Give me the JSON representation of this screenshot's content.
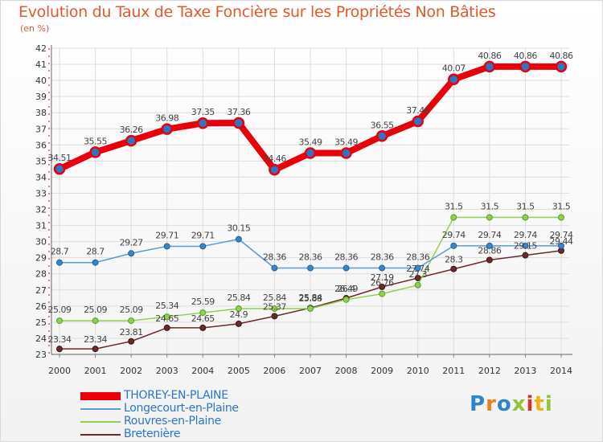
{
  "title": "Evolution du Taux de Taxe Foncière sur les Propriétés Non Bâties",
  "unit": "(en %)",
  "logo": "Proxiti",
  "chart_data": {
    "type": "line",
    "title": "Evolution du Taux de Taxe Foncière sur les Propriétés Non Bâties",
    "ylabel": "(en %)",
    "xlabel": "",
    "ylim": [
      23,
      42
    ],
    "yticks": [
      23,
      24,
      25,
      26,
      27,
      28,
      29,
      30,
      31,
      32,
      33,
      34,
      35,
      36,
      37,
      38,
      39,
      40,
      41,
      42
    ],
    "x": [
      "2000",
      "2001",
      "2002",
      "2003",
      "2004",
      "2005",
      "2006",
      "2007",
      "2008",
      "2009",
      "2010",
      "2011",
      "2012",
      "2013",
      "2014"
    ],
    "series": [
      {
        "name": "THOREY-EN-PLAINE",
        "color": "#e8000b",
        "values": [
          34.51,
          35.55,
          36.26,
          36.98,
          37.35,
          37.36,
          34.46,
          35.49,
          35.49,
          36.55,
          37.46,
          40.07,
          40.86,
          40.86,
          40.86
        ]
      },
      {
        "name": "Longecourt-en-Plaine",
        "color": "#5b9bd5",
        "values": [
          28.7,
          28.7,
          29.27,
          29.71,
          29.71,
          30.15,
          28.36,
          28.36,
          28.36,
          28.36,
          28.36,
          29.74,
          29.74,
          29.74,
          29.74
        ]
      },
      {
        "name": "Rouvres-en-Plaine",
        "color": "#8fd14f",
        "values": [
          25.09,
          25.09,
          25.09,
          25.34,
          25.59,
          25.84,
          25.84,
          25.84,
          26.4,
          26.76,
          27.3,
          31.5,
          31.5,
          31.5,
          31.5
        ]
      },
      {
        "name": "Bretenière",
        "color": "#6b2a2a",
        "values": [
          23.34,
          23.34,
          23.81,
          24.65,
          24.65,
          24.9,
          25.37,
          25.88,
          26.49,
          27.19,
          27.74,
          28.3,
          28.86,
          29.15,
          29.44
        ]
      }
    ],
    "legend_position": "bottom-left"
  }
}
